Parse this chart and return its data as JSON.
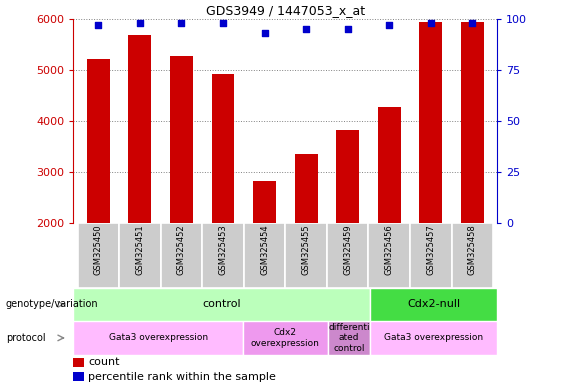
{
  "title": "GDS3949 / 1447053_x_at",
  "samples": [
    "GSM325450",
    "GSM325451",
    "GSM325452",
    "GSM325453",
    "GSM325454",
    "GSM325455",
    "GSM325459",
    "GSM325456",
    "GSM325457",
    "GSM325458"
  ],
  "counts": [
    5220,
    5680,
    5280,
    4920,
    2820,
    3350,
    3820,
    4270,
    5950,
    5950
  ],
  "percentiles": [
    97,
    98,
    98,
    98,
    93,
    95,
    95,
    97,
    98,
    98
  ],
  "bar_color": "#cc0000",
  "dot_color": "#0000cc",
  "ylim_left": [
    2000,
    6000
  ],
  "ylim_right": [
    0,
    100
  ],
  "yticks_left": [
    2000,
    3000,
    4000,
    5000,
    6000
  ],
  "yticks_right": [
    0,
    25,
    50,
    75,
    100
  ],
  "genotype_groups": [
    {
      "label": "control",
      "start": 0,
      "end": 7,
      "color": "#bbffbb"
    },
    {
      "label": "Cdx2-null",
      "start": 7,
      "end": 10,
      "color": "#44dd44"
    }
  ],
  "protocol_groups": [
    {
      "label": "Gata3 overexpression",
      "start": 0,
      "end": 4,
      "color": "#ffbbff"
    },
    {
      "label": "Cdx2\noverexpression",
      "start": 4,
      "end": 6,
      "color": "#ee99ee"
    },
    {
      "label": "differenti\nated\ncontrol",
      "start": 6,
      "end": 7,
      "color": "#cc88cc"
    },
    {
      "label": "Gata3 overexpression",
      "start": 7,
      "end": 10,
      "color": "#ffbbff"
    }
  ],
  "left_label_color": "#cc0000",
  "right_label_color": "#0000cc",
  "tick_bg_color": "#cccccc",
  "fig_width": 5.65,
  "fig_height": 3.84,
  "dpi": 100
}
